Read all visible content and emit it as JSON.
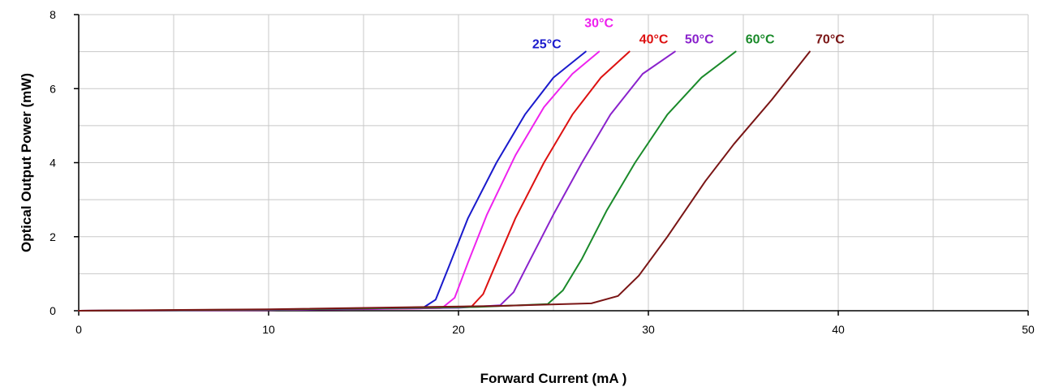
{
  "chart_data": {
    "type": "line",
    "title": "",
    "xlabel": "Forward Current (mA )",
    "ylabel": "Optical Output Power (mW)",
    "xlim": [
      0,
      50
    ],
    "ylim": [
      0,
      8
    ],
    "xticks": [
      0,
      10,
      20,
      30,
      40,
      50
    ],
    "yticks": [
      0,
      2,
      4,
      6,
      8
    ],
    "grid": true,
    "legend": "inline labels at curve ends",
    "series": [
      {
        "name": "25°C",
        "color": "#1a1acc",
        "points": [
          [
            0,
            0
          ],
          [
            10,
            0.02
          ],
          [
            17,
            0.06
          ],
          [
            18.2,
            0.1
          ],
          [
            18.8,
            0.3
          ],
          [
            19.5,
            1.2
          ],
          [
            20.5,
            2.5
          ],
          [
            22,
            4.0
          ],
          [
            23.5,
            5.3
          ],
          [
            25,
            6.3
          ],
          [
            26.7,
            7.0
          ]
        ]
      },
      {
        "name": "30°C",
        "color": "#ee22ee",
        "points": [
          [
            0,
            0
          ],
          [
            10,
            0.02
          ],
          [
            18,
            0.06
          ],
          [
            19.2,
            0.1
          ],
          [
            19.8,
            0.35
          ],
          [
            20.5,
            1.3
          ],
          [
            21.5,
            2.6
          ],
          [
            23,
            4.2
          ],
          [
            24.5,
            5.5
          ],
          [
            26,
            6.4
          ],
          [
            27.4,
            7.0
          ]
        ]
      },
      {
        "name": "40°C",
        "color": "#dd1111",
        "points": [
          [
            0,
            0
          ],
          [
            10,
            0.02
          ],
          [
            19,
            0.07
          ],
          [
            20.7,
            0.12
          ],
          [
            21.3,
            0.45
          ],
          [
            22,
            1.3
          ],
          [
            23,
            2.5
          ],
          [
            24.5,
            4.0
          ],
          [
            26,
            5.3
          ],
          [
            27.5,
            6.3
          ],
          [
            29,
            7.0
          ]
        ]
      },
      {
        "name": "50°C",
        "color": "#8a22cc",
        "points": [
          [
            0,
            0
          ],
          [
            10,
            0.02
          ],
          [
            20,
            0.08
          ],
          [
            22.2,
            0.15
          ],
          [
            22.9,
            0.5
          ],
          [
            23.8,
            1.4
          ],
          [
            25,
            2.6
          ],
          [
            26.5,
            4.0
          ],
          [
            28,
            5.3
          ],
          [
            29.7,
            6.4
          ],
          [
            31.4,
            7.0
          ]
        ]
      },
      {
        "name": "60°C",
        "color": "#1a8a2a",
        "points": [
          [
            0,
            0
          ],
          [
            10,
            0.03
          ],
          [
            21,
            0.1
          ],
          [
            24.7,
            0.18
          ],
          [
            25.5,
            0.55
          ],
          [
            26.5,
            1.4
          ],
          [
            27.8,
            2.7
          ],
          [
            29.3,
            4.0
          ],
          [
            31,
            5.3
          ],
          [
            32.8,
            6.3
          ],
          [
            34.6,
            7.0
          ]
        ]
      },
      {
        "name": "70°C",
        "color": "#7a1515",
        "points": [
          [
            0,
            0
          ],
          [
            10,
            0.04
          ],
          [
            22,
            0.13
          ],
          [
            27,
            0.2
          ],
          [
            28.4,
            0.4
          ],
          [
            29.5,
            0.95
          ],
          [
            31,
            2.0
          ],
          [
            33,
            3.5
          ],
          [
            34.5,
            4.5
          ],
          [
            36.5,
            5.7
          ],
          [
            38.5,
            7.0
          ]
        ]
      }
    ]
  }
}
